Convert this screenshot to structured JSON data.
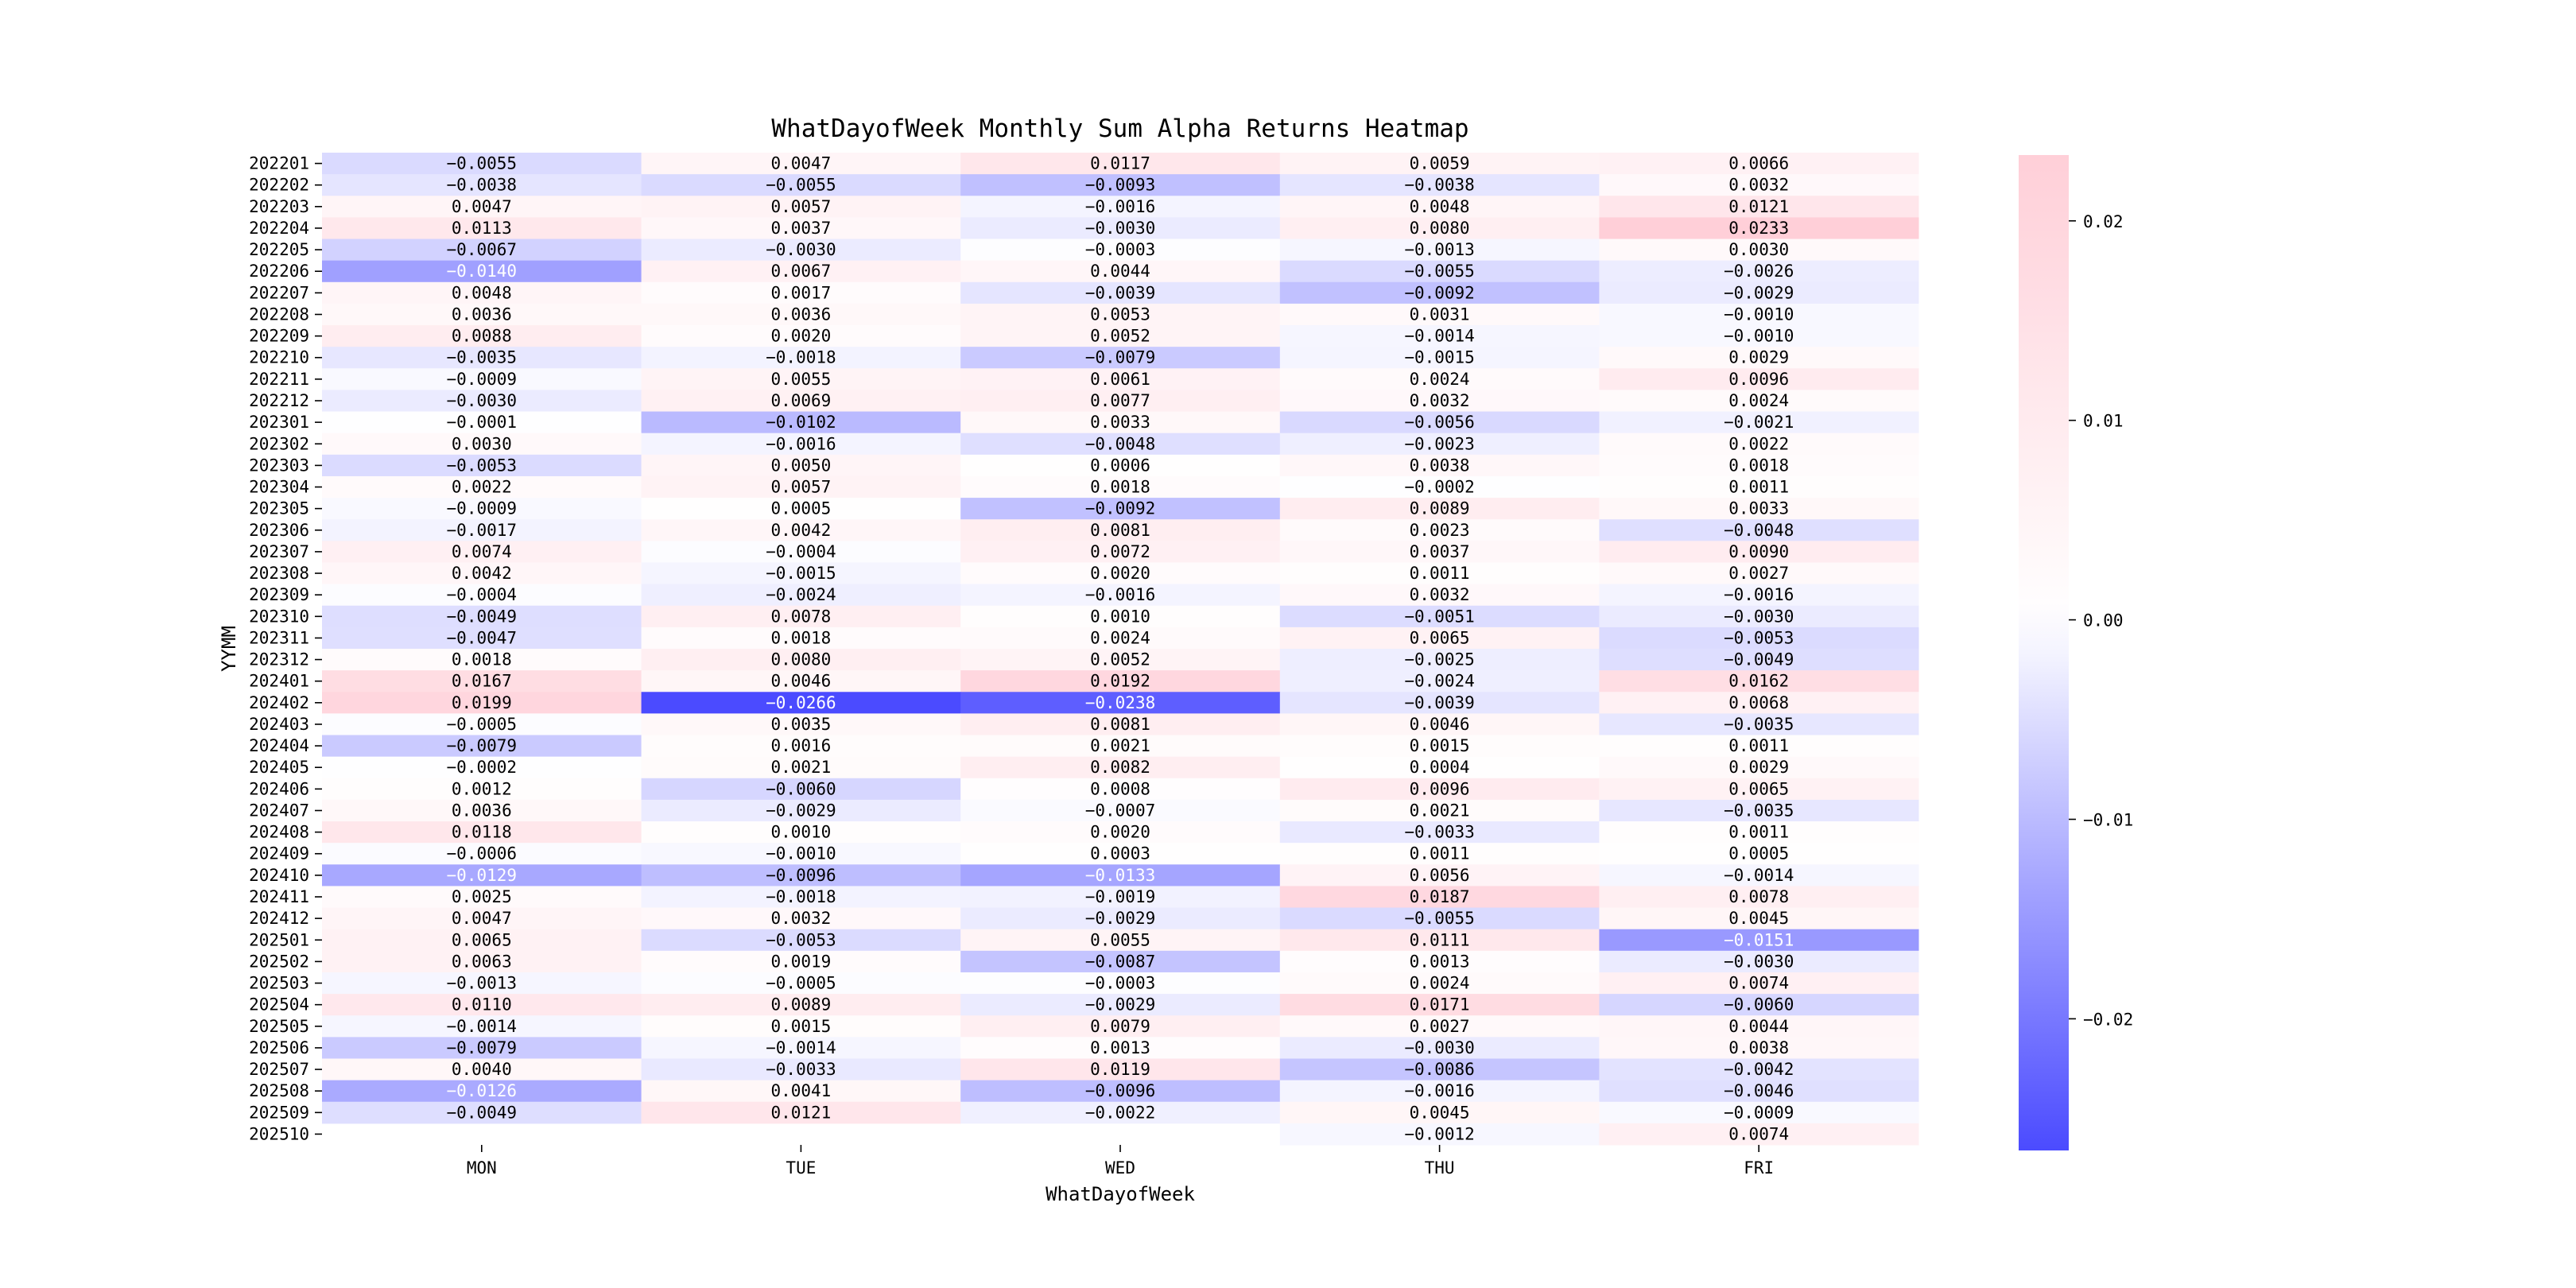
{
  "chart_data": {
    "type": "heatmap",
    "title": "WhatDayofWeek Monthly Sum Alpha Returns Heatmap",
    "xlabel": "WhatDayofWeek",
    "ylabel": "YYMM",
    "columns": [
      "MON",
      "TUE",
      "WED",
      "THU",
      "FRI"
    ],
    "rows": [
      "202201",
      "202202",
      "202203",
      "202204",
      "202205",
      "202206",
      "202207",
      "202208",
      "202209",
      "202210",
      "202211",
      "202212",
      "202301",
      "202302",
      "202303",
      "202304",
      "202305",
      "202306",
      "202307",
      "202308",
      "202309",
      "202310",
      "202311",
      "202312",
      "202401",
      "202402",
      "202403",
      "202404",
      "202405",
      "202406",
      "202407",
      "202408",
      "202409",
      "202410",
      "202411",
      "202412",
      "202501",
      "202502",
      "202503",
      "202504",
      "202505",
      "202506",
      "202507",
      "202508",
      "202509",
      "202510"
    ],
    "values": [
      [
        -0.0055,
        0.0047,
        0.0117,
        0.0059,
        0.0066
      ],
      [
        -0.0038,
        -0.0055,
        -0.0093,
        -0.0038,
        0.0032
      ],
      [
        0.0047,
        0.0057,
        -0.0016,
        0.0048,
        0.0121
      ],
      [
        0.0113,
        0.0037,
        -0.003,
        0.008,
        0.0233
      ],
      [
        -0.0067,
        -0.003,
        -0.0003,
        -0.0013,
        0.003
      ],
      [
        -0.014,
        0.0067,
        0.0044,
        -0.0055,
        -0.0026
      ],
      [
        0.0048,
        0.0017,
        -0.0039,
        -0.0092,
        -0.0029
      ],
      [
        0.0036,
        0.0036,
        0.0053,
        0.0031,
        -0.001
      ],
      [
        0.0088,
        0.002,
        0.0052,
        -0.0014,
        -0.001
      ],
      [
        -0.0035,
        -0.0018,
        -0.0079,
        -0.0015,
        0.0029
      ],
      [
        -0.0009,
        0.0055,
        0.0061,
        0.0024,
        0.0096
      ],
      [
        -0.003,
        0.0069,
        0.0077,
        0.0032,
        0.0024
      ],
      [
        -0.0001,
        -0.0102,
        0.0033,
        -0.0056,
        -0.0021
      ],
      [
        0.003,
        -0.0016,
        -0.0048,
        -0.0023,
        0.0022
      ],
      [
        -0.0053,
        0.005,
        0.0006,
        0.0038,
        0.0018
      ],
      [
        0.0022,
        0.0057,
        0.0018,
        -0.0002,
        0.0011
      ],
      [
        -0.0009,
        0.0005,
        -0.0092,
        0.0089,
        0.0033
      ],
      [
        -0.0017,
        0.0042,
        0.0081,
        0.0023,
        -0.0048
      ],
      [
        0.0074,
        -0.0004,
        0.0072,
        0.0037,
        0.009
      ],
      [
        0.0042,
        -0.0015,
        0.002,
        0.0011,
        0.0027
      ],
      [
        -0.0004,
        -0.0024,
        -0.0016,
        0.0032,
        -0.0016
      ],
      [
        -0.0049,
        0.0078,
        0.001,
        -0.0051,
        -0.003
      ],
      [
        -0.0047,
        0.0018,
        0.0024,
        0.0065,
        -0.0053
      ],
      [
        0.0018,
        0.008,
        0.0052,
        -0.0025,
        -0.0049
      ],
      [
        0.0167,
        0.0046,
        0.0192,
        -0.0024,
        0.0162
      ],
      [
        0.0199,
        -0.0266,
        -0.0238,
        -0.0039,
        0.0068
      ],
      [
        -0.0005,
        0.0035,
        0.0081,
        0.0046,
        -0.0035
      ],
      [
        -0.0079,
        0.0016,
        0.0021,
        0.0015,
        0.0011
      ],
      [
        -0.0002,
        0.0021,
        0.0082,
        0.0004,
        0.0029
      ],
      [
        0.0012,
        -0.006,
        0.0008,
        0.0096,
        0.0065
      ],
      [
        0.0036,
        -0.0029,
        -0.0007,
        0.0021,
        -0.0035
      ],
      [
        0.0118,
        0.001,
        0.002,
        -0.0033,
        0.0011
      ],
      [
        -0.0006,
        -0.001,
        0.0003,
        0.0011,
        0.0005
      ],
      [
        -0.0129,
        -0.0096,
        -0.0133,
        0.0056,
        -0.0014
      ],
      [
        0.0025,
        -0.0018,
        -0.0019,
        0.0187,
        0.0078
      ],
      [
        0.0047,
        0.0032,
        -0.0029,
        -0.0055,
        0.0045
      ],
      [
        0.0065,
        -0.0053,
        0.0055,
        0.0111,
        -0.0151
      ],
      [
        0.0063,
        0.0019,
        -0.0087,
        0.0013,
        -0.003
      ],
      [
        -0.0013,
        -0.0005,
        -0.0003,
        0.0024,
        0.0074
      ],
      [
        0.011,
        0.0089,
        -0.0029,
        0.0171,
        -0.006
      ],
      [
        -0.0014,
        0.0015,
        0.0079,
        0.0027,
        0.0044
      ],
      [
        -0.0079,
        -0.0014,
        0.0013,
        -0.003,
        0.0038
      ],
      [
        0.004,
        -0.0033,
        0.0119,
        -0.0086,
        -0.0042
      ],
      [
        -0.0126,
        0.0041,
        -0.0096,
        -0.0016,
        -0.0046
      ],
      [
        -0.0049,
        0.0121,
        -0.0022,
        0.0045,
        -0.0009
      ],
      [
        null,
        null,
        null,
        -0.0012,
        0.0074
      ]
    ],
    "vmin": -0.0266,
    "vmax": 0.0233,
    "center": 0,
    "colorbar": {
      "ticks": [
        0.02,
        0.01,
        0.0,
        -0.01,
        -0.02
      ],
      "tick_labels": [
        "0.02",
        "0.01",
        "0.00",
        "−0.01",
        "−0.02"
      ],
      "placement": "right"
    },
    "colors": {
      "negative": "#4b4bff",
      "zero": "#ffffff",
      "positive": "#ffcfd8"
    },
    "annotate": true,
    "annotation_format": "4 decimals"
  }
}
